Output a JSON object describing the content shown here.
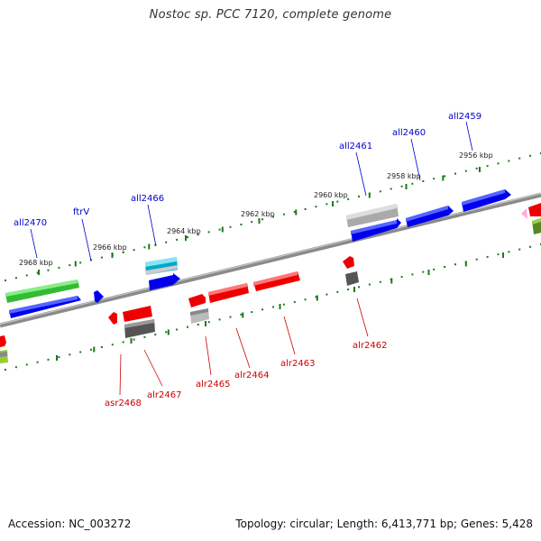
{
  "title": "Nostoc sp. PCC 7120, complete genome",
  "footer": {
    "accession": "Accession: NC_003272",
    "summary": "Topology: circular; Length: 6,413,771 bp; Genes: 5,428"
  },
  "colors": {
    "plus_label": "#0000cc",
    "minus_label": "#cc0000",
    "tick": "#1a7a1a",
    "backbone": "#888888"
  },
  "ticks": [
    {
      "label": "2968 kbp"
    },
    {
      "label": "2966 kbp"
    },
    {
      "label": "2964 kbp"
    },
    {
      "label": "2962 kbp"
    },
    {
      "label": "2960 kbp"
    },
    {
      "label": "2958 kbp"
    },
    {
      "label": "2956 kbp"
    }
  ],
  "genes_top": [
    {
      "label": "all2470"
    },
    {
      "label": "ftrV"
    },
    {
      "label": "all2466"
    },
    {
      "label": "all2461"
    },
    {
      "label": "all2460"
    },
    {
      "label": "all2459"
    }
  ],
  "genes_bottom": [
    {
      "label": "asr2468"
    },
    {
      "label": "alr2467"
    },
    {
      "label": "alr2465"
    },
    {
      "label": "alr2464"
    },
    {
      "label": "alr2463"
    },
    {
      "label": "alr2462"
    }
  ]
}
